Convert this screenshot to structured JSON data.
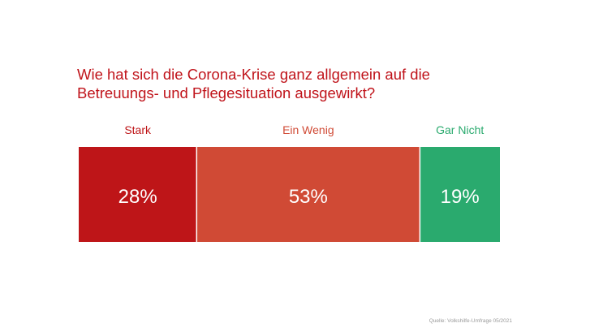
{
  "title_lines": [
    "Wie hat sich die Corona-Krise ganz allgemein auf die",
    "Betreuungs- und Pflegesituation ausgewirkt?"
  ],
  "source": "Quelle: Volkshilfe-Umfrage 05/2021",
  "colors": {
    "title": "#c0141b",
    "stark": "#be1518",
    "ein_wenig": "#d04a35",
    "gar_nicht": "#2aaa6e",
    "value_text": "#ffffff",
    "source": "#9a9a9a"
  },
  "chart_data": {
    "type": "bar",
    "orientation": "horizontal-stacked-100",
    "categories": [
      "Stark",
      "Ein Wenig",
      "Gar Nicht"
    ],
    "values": [
      28,
      53,
      19
    ],
    "value_labels": [
      "28%",
      "53%",
      "19%"
    ],
    "category_colors": [
      "#be1518",
      "#d04a35",
      "#2aaa6e"
    ],
    "label_colors": [
      "#be1518",
      "#d04a35",
      "#2aaa6e"
    ],
    "unit": "%",
    "total": 100
  }
}
